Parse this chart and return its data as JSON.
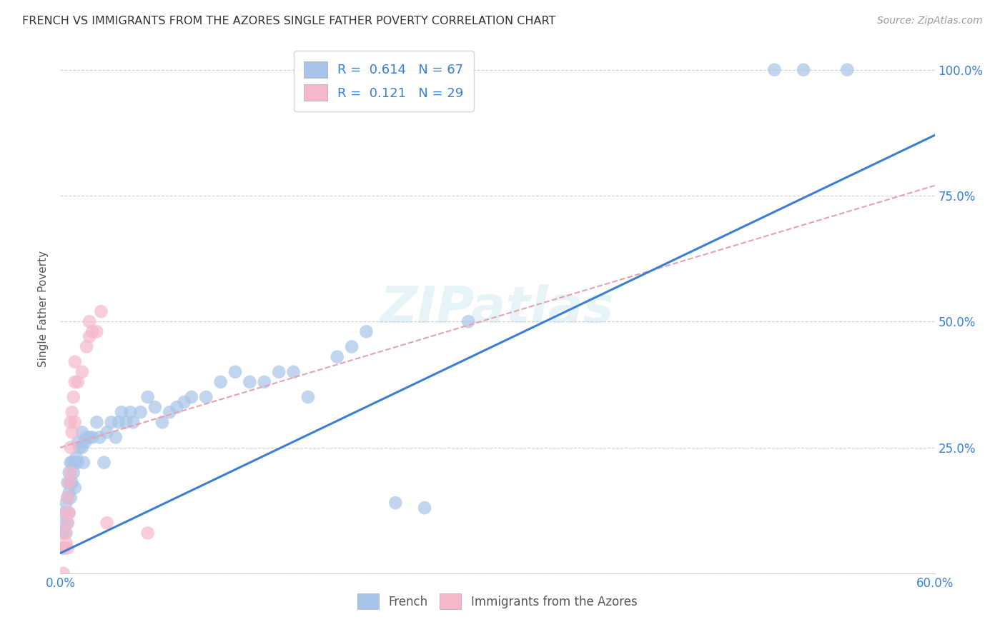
{
  "title": "FRENCH VS IMMIGRANTS FROM THE AZORES SINGLE FATHER POVERTY CORRELATION CHART",
  "source": "Source: ZipAtlas.com",
  "ylabel": "Single Father Poverty",
  "xlim": [
    0.0,
    0.6
  ],
  "ylim": [
    0.0,
    1.05
  ],
  "x_tick_pos": [
    0.0,
    0.1,
    0.2,
    0.3,
    0.4,
    0.5,
    0.6
  ],
  "x_tick_labels": [
    "0.0%",
    "",
    "",
    "",
    "",
    "",
    "60.0%"
  ],
  "y_tick_pos": [
    0.0,
    0.25,
    0.5,
    0.75,
    1.0
  ],
  "y_tick_labels": [
    "",
    "25.0%",
    "50.0%",
    "75.0%",
    "100.0%"
  ],
  "french_R": "0.614",
  "french_N": "67",
  "azores_R": "0.121",
  "azores_N": "29",
  "french_color": "#a8c4e8",
  "azores_color": "#f5b8cb",
  "french_line_color": "#3a7fd4",
  "azores_line_color": "#e8a0b0",
  "watermark": "ZIPatlas",
  "french_points": [
    [
      0.002,
      0.05
    ],
    [
      0.002,
      0.08
    ],
    [
      0.003,
      0.1
    ],
    [
      0.003,
      0.12
    ],
    [
      0.004,
      0.08
    ],
    [
      0.004,
      0.14
    ],
    [
      0.005,
      0.1
    ],
    [
      0.005,
      0.15
    ],
    [
      0.005,
      0.18
    ],
    [
      0.006,
      0.12
    ],
    [
      0.006,
      0.16
    ],
    [
      0.006,
      0.2
    ],
    [
      0.007,
      0.15
    ],
    [
      0.007,
      0.18
    ],
    [
      0.007,
      0.22
    ],
    [
      0.008,
      0.18
    ],
    [
      0.008,
      0.22
    ],
    [
      0.009,
      0.2
    ],
    [
      0.01,
      0.17
    ],
    [
      0.01,
      0.22
    ],
    [
      0.011,
      0.23
    ],
    [
      0.012,
      0.22
    ],
    [
      0.012,
      0.26
    ],
    [
      0.013,
      0.25
    ],
    [
      0.015,
      0.25
    ],
    [
      0.015,
      0.28
    ],
    [
      0.016,
      0.22
    ],
    [
      0.017,
      0.26
    ],
    [
      0.018,
      0.27
    ],
    [
      0.02,
      0.27
    ],
    [
      0.022,
      0.27
    ],
    [
      0.025,
      0.3
    ],
    [
      0.027,
      0.27
    ],
    [
      0.03,
      0.22
    ],
    [
      0.032,
      0.28
    ],
    [
      0.035,
      0.3
    ],
    [
      0.038,
      0.27
    ],
    [
      0.04,
      0.3
    ],
    [
      0.042,
      0.32
    ],
    [
      0.045,
      0.3
    ],
    [
      0.048,
      0.32
    ],
    [
      0.05,
      0.3
    ],
    [
      0.055,
      0.32
    ],
    [
      0.06,
      0.35
    ],
    [
      0.065,
      0.33
    ],
    [
      0.07,
      0.3
    ],
    [
      0.075,
      0.32
    ],
    [
      0.08,
      0.33
    ],
    [
      0.085,
      0.34
    ],
    [
      0.09,
      0.35
    ],
    [
      0.1,
      0.35
    ],
    [
      0.11,
      0.38
    ],
    [
      0.12,
      0.4
    ],
    [
      0.13,
      0.38
    ],
    [
      0.14,
      0.38
    ],
    [
      0.15,
      0.4
    ],
    [
      0.16,
      0.4
    ],
    [
      0.17,
      0.35
    ],
    [
      0.19,
      0.43
    ],
    [
      0.2,
      0.45
    ],
    [
      0.21,
      0.48
    ],
    [
      0.23,
      0.14
    ],
    [
      0.25,
      0.13
    ],
    [
      0.28,
      0.5
    ],
    [
      0.49,
      1.0
    ],
    [
      0.51,
      1.0
    ],
    [
      0.54,
      1.0
    ]
  ],
  "azores_points": [
    [
      0.002,
      0.0
    ],
    [
      0.003,
      0.05
    ],
    [
      0.003,
      0.08
    ],
    [
      0.004,
      0.06
    ],
    [
      0.004,
      0.12
    ],
    [
      0.005,
      0.05
    ],
    [
      0.005,
      0.1
    ],
    [
      0.005,
      0.15
    ],
    [
      0.006,
      0.12
    ],
    [
      0.006,
      0.18
    ],
    [
      0.007,
      0.2
    ],
    [
      0.007,
      0.25
    ],
    [
      0.007,
      0.3
    ],
    [
      0.008,
      0.28
    ],
    [
      0.008,
      0.32
    ],
    [
      0.009,
      0.35
    ],
    [
      0.01,
      0.3
    ],
    [
      0.01,
      0.38
    ],
    [
      0.01,
      0.42
    ],
    [
      0.012,
      0.38
    ],
    [
      0.015,
      0.4
    ],
    [
      0.018,
      0.45
    ],
    [
      0.02,
      0.47
    ],
    [
      0.02,
      0.5
    ],
    [
      0.022,
      0.48
    ],
    [
      0.025,
      0.48
    ],
    [
      0.028,
      0.52
    ],
    [
      0.032,
      0.1
    ],
    [
      0.06,
      0.08
    ]
  ]
}
